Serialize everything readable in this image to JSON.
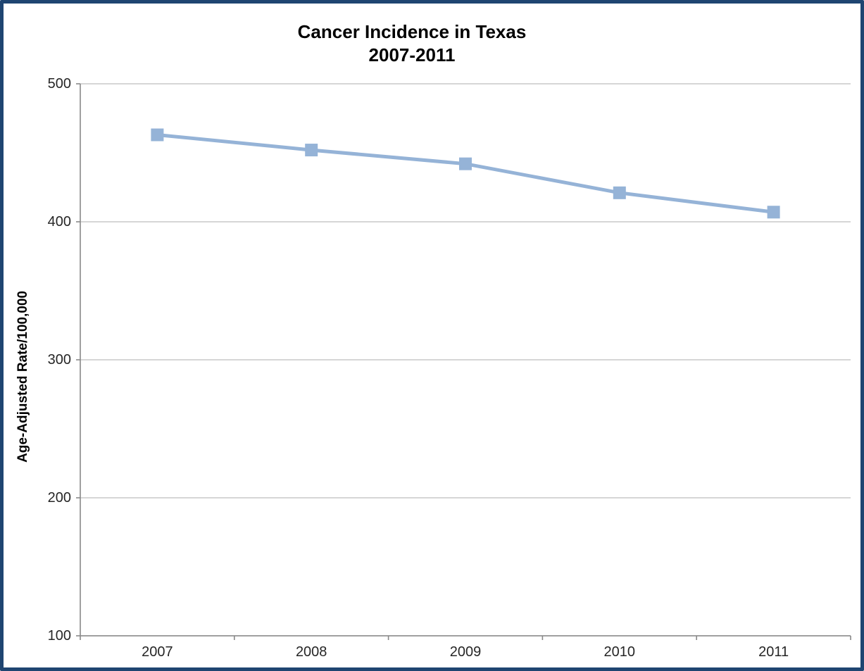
{
  "chart_data": {
    "type": "line",
    "title": "Cancer Incidence in Texas",
    "subtitle": "2007-2011",
    "ylabel": "Age-Adjusted Rate/100,000",
    "xlabel": "",
    "categories": [
      "2007",
      "2008",
      "2009",
      "2010",
      "2011"
    ],
    "values": [
      463,
      452,
      442,
      421,
      407
    ],
    "ylim": [
      100,
      500
    ],
    "yticks": [
      100,
      200,
      300,
      400,
      500
    ],
    "grid": true,
    "legend": "none",
    "marker": "square",
    "line_color": "#95B3D7",
    "marker_color": "#95B3D7"
  },
  "colors": {
    "frame_border": "#1F4571",
    "background": "#FFFFFF",
    "gridline": "#C8C8C8",
    "axis": "#898989",
    "tick_label": "#262626",
    "title": "#000000"
  }
}
